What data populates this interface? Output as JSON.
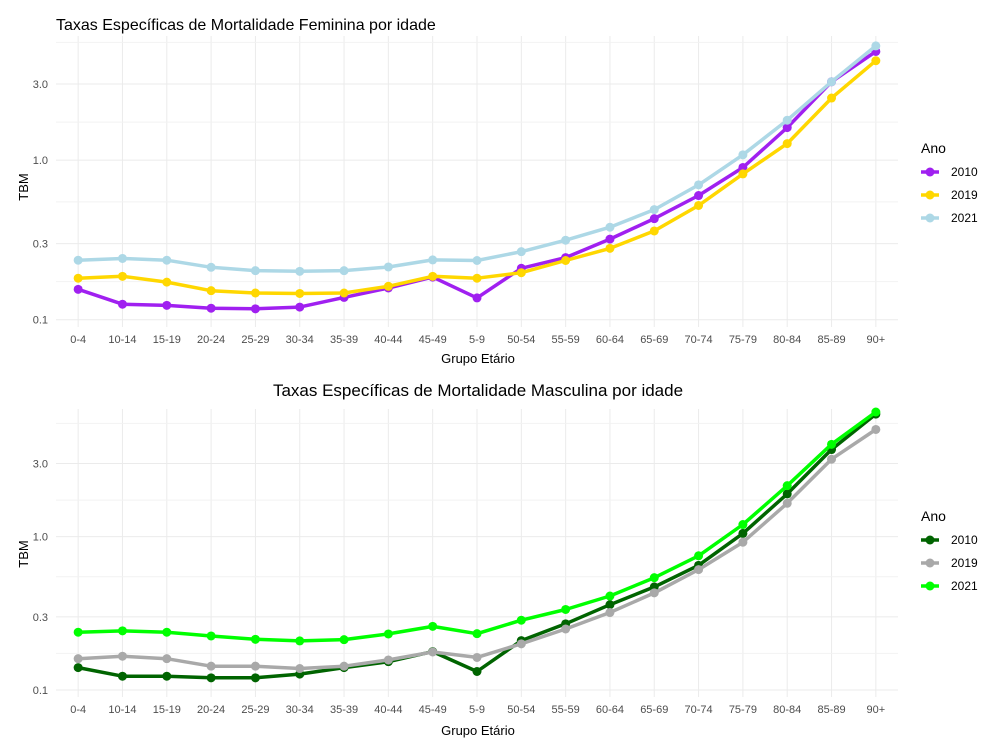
{
  "chart_data": [
    {
      "type": "line",
      "title": "Taxas Específicas de Mortalidade Feminina por idade",
      "title_align": "left",
      "xlabel": "Grupo Etário",
      "ylabel": "TBM",
      "y_scale": "log10",
      "ylim": [
        0.09,
        6.0
      ],
      "yticks": [
        0.1,
        0.3,
        1.0,
        3.0
      ],
      "ytick_labels": [
        "0.1",
        "0.3",
        "1.0",
        "3.0"
      ],
      "categories": [
        "0-4",
        "10-14",
        "15-19",
        "20-24",
        "25-29",
        "30-34",
        "35-39",
        "40-44",
        "45-49",
        "5-9",
        "50-54",
        "55-59",
        "60-64",
        "65-69",
        "70-74",
        "75-79",
        "80-84",
        "85-89",
        "90+"
      ],
      "legend_title": "Ano",
      "legend_position": "right",
      "grid": true,
      "series": [
        {
          "name": "2010",
          "color": "#a020f0",
          "values": [
            0.155,
            0.125,
            0.123,
            0.118,
            0.117,
            0.12,
            0.138,
            0.158,
            0.185,
            0.137,
            0.21,
            0.245,
            0.32,
            0.43,
            0.6,
            0.9,
            1.6,
            3.1,
            4.8
          ]
        },
        {
          "name": "2019",
          "color": "#ffd700",
          "values": [
            0.182,
            0.187,
            0.172,
            0.152,
            0.147,
            0.146,
            0.147,
            0.162,
            0.187,
            0.182,
            0.197,
            0.235,
            0.28,
            0.36,
            0.52,
            0.82,
            1.27,
            2.45,
            4.2
          ]
        },
        {
          "name": "2021",
          "color": "#add8e6",
          "values": [
            0.236,
            0.242,
            0.236,
            0.213,
            0.203,
            0.201,
            0.203,
            0.214,
            0.237,
            0.235,
            0.267,
            0.315,
            0.38,
            0.49,
            0.7,
            1.08,
            1.78,
            3.1,
            5.2
          ]
        }
      ]
    },
    {
      "type": "line",
      "title": "Taxas Específicas de Mortalidade Masculina por idade",
      "title_align": "center",
      "xlabel": "Grupo Etário",
      "ylabel": "TBM",
      "y_scale": "log10",
      "ylim": [
        0.09,
        6.8
      ],
      "yticks": [
        0.1,
        0.3,
        1.0,
        3.0
      ],
      "ytick_labels": [
        "0.1",
        "0.3",
        "1.0",
        "3.0"
      ],
      "categories": [
        "0-4",
        "10-14",
        "15-19",
        "20-24",
        "25-29",
        "30-34",
        "35-39",
        "40-44",
        "45-49",
        "5-9",
        "50-54",
        "55-59",
        "60-64",
        "65-69",
        "70-74",
        "75-79",
        "80-84",
        "85-89",
        "90+"
      ],
      "legend_title": "Ano",
      "legend_position": "right",
      "grid": true,
      "series": [
        {
          "name": "2010",
          "color": "#006400",
          "values": [
            0.14,
            0.123,
            0.123,
            0.12,
            0.12,
            0.127,
            0.14,
            0.153,
            0.178,
            0.132,
            0.21,
            0.27,
            0.36,
            0.47,
            0.65,
            1.05,
            1.9,
            3.7,
            6.3
          ]
        },
        {
          "name": "2019",
          "color": "#a9a9a9",
          "values": [
            0.16,
            0.166,
            0.16,
            0.143,
            0.143,
            0.138,
            0.143,
            0.157,
            0.177,
            0.163,
            0.2,
            0.25,
            0.32,
            0.43,
            0.61,
            0.92,
            1.65,
            3.2,
            5.0
          ]
        },
        {
          "name": "2021",
          "color": "#00ff00",
          "values": [
            0.238,
            0.243,
            0.238,
            0.225,
            0.214,
            0.209,
            0.213,
            0.232,
            0.26,
            0.233,
            0.285,
            0.335,
            0.41,
            0.54,
            0.75,
            1.2,
            2.15,
            4.0,
            6.5
          ]
        }
      ]
    }
  ]
}
